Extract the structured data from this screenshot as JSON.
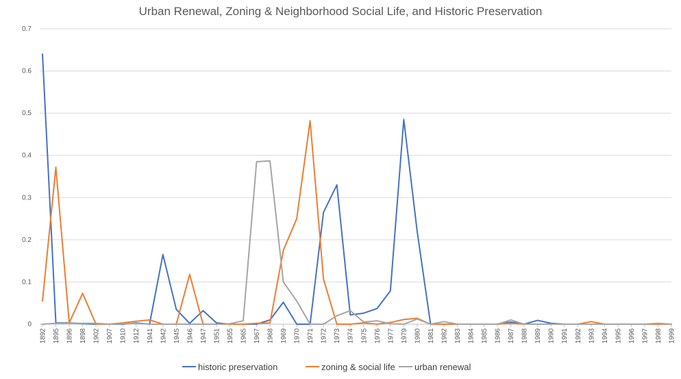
{
  "chart_data": {
    "type": "line",
    "title": "Urban Renewal, Zoning & Neighborhood Social Life, and Historic Preservation",
    "xlabel": "",
    "ylabel": "",
    "ylim": [
      0,
      0.7
    ],
    "y_ticks": [
      "0",
      "0.1",
      "0.2",
      "0.3",
      "0.4",
      "0.5",
      "0.6",
      "0.7"
    ],
    "grid": true,
    "legend_position": "bottom",
    "categories": [
      "1892",
      "1895",
      "1896",
      "1898",
      "1902",
      "1907",
      "1910",
      "1912",
      "1941",
      "1942",
      "1945",
      "1946",
      "1947",
      "1951",
      "1955",
      "1965",
      "1967",
      "1968",
      "1969",
      "1970",
      "1971",
      "1972",
      "1973",
      "1974",
      "1975",
      "1976",
      "1977",
      "1979",
      "1980",
      "1981",
      "1982",
      "1983",
      "1984",
      "1985",
      "1986",
      "1987",
      "1988",
      "1989",
      "1990",
      "1991",
      "1992",
      "1993",
      "1994",
      "1995",
      "1996",
      "1997",
      "1998",
      "1999"
    ],
    "series": [
      {
        "name": "historic preservation",
        "color": "#4472C4",
        "values": [
          0.64,
          0.003,
          0.003,
          0.001,
          0,
          0,
          0,
          0.003,
          0,
          0.165,
          0.035,
          0.002,
          0.032,
          0.003,
          0,
          0,
          0,
          0.01,
          0.052,
          0,
          0,
          0.265,
          0.33,
          0.022,
          0.026,
          0.037,
          0.079,
          0.485,
          0.22,
          0,
          0,
          0,
          0,
          0,
          0,
          0.005,
          0,
          0.009,
          0.002,
          0,
          0,
          0,
          0,
          0,
          0,
          0,
          0,
          0
        ]
      },
      {
        "name": "zoning & social life",
        "color": "#ED7D31",
        "values": [
          0.055,
          0.372,
          0.003,
          0.073,
          0,
          0,
          0.003,
          0.007,
          0.01,
          0,
          0,
          0.118,
          0,
          0,
          0,
          0,
          0.002,
          0.003,
          0.175,
          0.25,
          0.482,
          0.107,
          0,
          0,
          0.003,
          0,
          0.004,
          0.011,
          0.014,
          0,
          0,
          0,
          0,
          0,
          0,
          0.002,
          0,
          0,
          0,
          0,
          0,
          0.006,
          0,
          0,
          0,
          0,
          0,
          0
        ]
      },
      {
        "name": "urban renewal",
        "color": "#A5A5A5",
        "values": [
          0,
          0.002,
          0.002,
          0.002,
          0.002,
          0,
          0.001,
          0.002,
          0,
          0,
          0,
          0,
          0,
          0,
          0.001,
          0.008,
          0.385,
          0.387,
          0.1,
          0.055,
          0,
          0,
          0.02,
          0.032,
          0.005,
          0.008,
          0.001,
          0,
          0.012,
          0,
          0.006,
          0,
          0,
          0,
          0,
          0.01,
          0,
          0,
          0,
          0,
          0,
          0,
          0,
          0,
          0,
          0,
          0.002,
          0
        ]
      }
    ]
  }
}
